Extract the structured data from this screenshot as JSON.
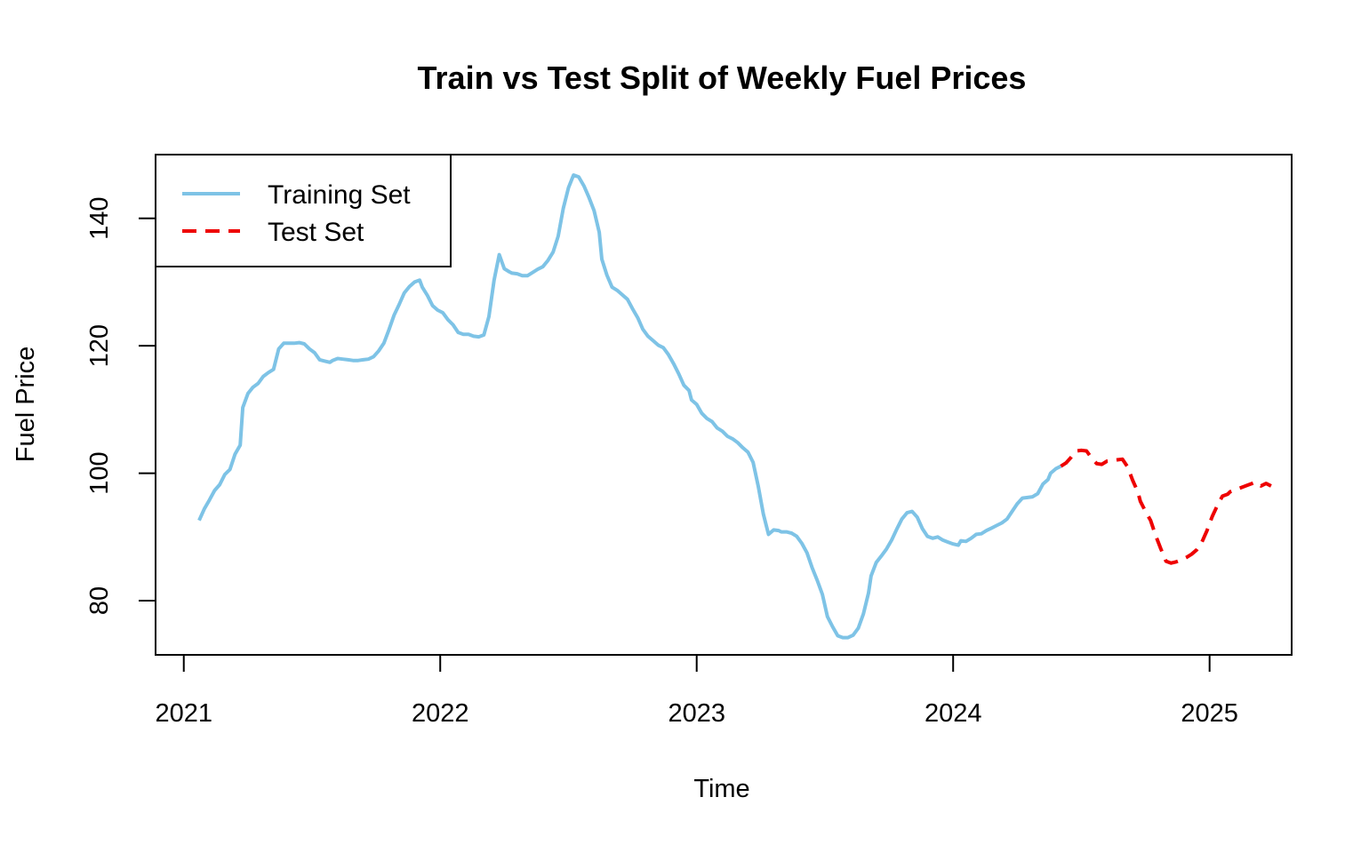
{
  "chart_data": {
    "type": "line",
    "title": "Train vs Test Split of Weekly Fuel Prices",
    "xlabel": "Time",
    "ylabel": "Fuel Price",
    "xlim": [
      2020.89,
      2025.32
    ],
    "ylim": [
      71.5,
      150
    ],
    "x_ticks": [
      {
        "value": 2021,
        "label": "2021"
      },
      {
        "value": 2022,
        "label": "2022"
      },
      {
        "value": 2023,
        "label": "2023"
      },
      {
        "value": 2024,
        "label": "2024"
      },
      {
        "value": 2025,
        "label": "2025"
      }
    ],
    "y_ticks": [
      {
        "value": 80,
        "label": "80"
      },
      {
        "value": 100,
        "label": "100"
      },
      {
        "value": 120,
        "label": "120"
      },
      {
        "value": 140,
        "label": "140"
      }
    ],
    "grid": false,
    "legend": {
      "position": "top-left"
    },
    "series": [
      {
        "name": "Training Set",
        "color": "#7ec3e6",
        "style": "solid",
        "points": [
          [
            2021.06,
            92.6
          ],
          [
            2021.08,
            94.4
          ],
          [
            2021.1,
            95.8
          ],
          [
            2021.12,
            97.3
          ],
          [
            2021.14,
            98.2
          ],
          [
            2021.16,
            99.8
          ],
          [
            2021.18,
            100.6
          ],
          [
            2021.2,
            103.0
          ],
          [
            2021.22,
            104.4
          ],
          [
            2021.23,
            110.3
          ],
          [
            2021.25,
            112.5
          ],
          [
            2021.27,
            113.5
          ],
          [
            2021.29,
            114.1
          ],
          [
            2021.31,
            115.2
          ],
          [
            2021.33,
            115.8
          ],
          [
            2021.35,
            116.3
          ],
          [
            2021.37,
            119.5
          ],
          [
            2021.39,
            120.4
          ],
          [
            2021.41,
            120.4
          ],
          [
            2021.43,
            120.4
          ],
          [
            2021.45,
            120.5
          ],
          [
            2021.47,
            120.3
          ],
          [
            2021.49,
            119.5
          ],
          [
            2021.51,
            118.9
          ],
          [
            2021.53,
            117.8
          ],
          [
            2021.55,
            117.6
          ],
          [
            2021.57,
            117.4
          ],
          [
            2021.58,
            117.7
          ],
          [
            2021.6,
            118.0
          ],
          [
            2021.62,
            117.9
          ],
          [
            2021.64,
            117.8
          ],
          [
            2021.66,
            117.7
          ],
          [
            2021.68,
            117.7
          ],
          [
            2021.7,
            117.8
          ],
          [
            2021.72,
            117.9
          ],
          [
            2021.74,
            118.3
          ],
          [
            2021.76,
            119.2
          ],
          [
            2021.78,
            120.4
          ],
          [
            2021.8,
            122.5
          ],
          [
            2021.82,
            124.8
          ],
          [
            2021.84,
            126.5
          ],
          [
            2021.86,
            128.3
          ],
          [
            2021.88,
            129.3
          ],
          [
            2021.9,
            130.0
          ],
          [
            2021.92,
            130.3
          ],
          [
            2021.93,
            129.2
          ],
          [
            2021.95,
            127.9
          ],
          [
            2021.97,
            126.3
          ],
          [
            2021.99,
            125.6
          ],
          [
            2022.01,
            125.2
          ],
          [
            2022.03,
            124.1
          ],
          [
            2022.05,
            123.3
          ],
          [
            2022.07,
            122.1
          ],
          [
            2022.09,
            121.8
          ],
          [
            2022.11,
            121.8
          ],
          [
            2022.13,
            121.5
          ],
          [
            2022.15,
            121.4
          ],
          [
            2022.17,
            121.7
          ],
          [
            2022.19,
            124.6
          ],
          [
            2022.21,
            130.3
          ],
          [
            2022.23,
            134.3
          ],
          [
            2022.25,
            132.1
          ],
          [
            2022.27,
            131.6
          ],
          [
            2022.28,
            131.4
          ],
          [
            2022.3,
            131.3
          ],
          [
            2022.32,
            131.0
          ],
          [
            2022.34,
            131.0
          ],
          [
            2022.36,
            131.5
          ],
          [
            2022.38,
            132.0
          ],
          [
            2022.4,
            132.4
          ],
          [
            2022.42,
            133.4
          ],
          [
            2022.44,
            134.7
          ],
          [
            2022.46,
            137.2
          ],
          [
            2022.48,
            141.6
          ],
          [
            2022.5,
            144.8
          ],
          [
            2022.52,
            146.8
          ],
          [
            2022.54,
            146.5
          ],
          [
            2022.56,
            145.1
          ],
          [
            2022.58,
            143.3
          ],
          [
            2022.6,
            141.2
          ],
          [
            2022.62,
            137.8
          ],
          [
            2022.63,
            133.6
          ],
          [
            2022.65,
            131.1
          ],
          [
            2022.67,
            129.2
          ],
          [
            2022.69,
            128.7
          ],
          [
            2022.71,
            128.0
          ],
          [
            2022.73,
            127.3
          ],
          [
            2022.75,
            125.8
          ],
          [
            2022.77,
            124.4
          ],
          [
            2022.79,
            122.6
          ],
          [
            2022.81,
            121.5
          ],
          [
            2022.83,
            120.8
          ],
          [
            2022.85,
            120.1
          ],
          [
            2022.87,
            119.7
          ],
          [
            2022.89,
            118.6
          ],
          [
            2022.91,
            117.2
          ],
          [
            2022.93,
            115.6
          ],
          [
            2022.95,
            113.8
          ],
          [
            2022.97,
            113.0
          ],
          [
            2022.98,
            111.5
          ],
          [
            2023.0,
            110.8
          ],
          [
            2023.02,
            109.4
          ],
          [
            2023.04,
            108.6
          ],
          [
            2023.06,
            108.1
          ],
          [
            2023.08,
            107.1
          ],
          [
            2023.1,
            106.6
          ],
          [
            2023.12,
            105.8
          ],
          [
            2023.14,
            105.4
          ],
          [
            2023.16,
            104.8
          ],
          [
            2023.18,
            104.0
          ],
          [
            2023.2,
            103.3
          ],
          [
            2023.22,
            101.7
          ],
          [
            2023.24,
            98.0
          ],
          [
            2023.26,
            93.6
          ],
          [
            2023.28,
            90.4
          ],
          [
            2023.3,
            91.1
          ],
          [
            2023.32,
            91.0
          ],
          [
            2023.33,
            90.8
          ],
          [
            2023.35,
            90.8
          ],
          [
            2023.37,
            90.6
          ],
          [
            2023.39,
            90.1
          ],
          [
            2023.41,
            89.0
          ],
          [
            2023.43,
            87.5
          ],
          [
            2023.45,
            85.2
          ],
          [
            2023.47,
            83.2
          ],
          [
            2023.49,
            81.0
          ],
          [
            2023.51,
            77.5
          ],
          [
            2023.53,
            75.9
          ],
          [
            2023.55,
            74.5
          ],
          [
            2023.57,
            74.2
          ],
          [
            2023.59,
            74.2
          ],
          [
            2023.61,
            74.6
          ],
          [
            2023.63,
            75.7
          ],
          [
            2023.65,
            77.9
          ],
          [
            2023.67,
            81.2
          ],
          [
            2023.68,
            83.9
          ],
          [
            2023.7,
            86.0
          ],
          [
            2023.72,
            87.0
          ],
          [
            2023.74,
            88.1
          ],
          [
            2023.76,
            89.5
          ],
          [
            2023.78,
            91.2
          ],
          [
            2023.8,
            92.8
          ],
          [
            2023.82,
            93.8
          ],
          [
            2023.84,
            94.0
          ],
          [
            2023.86,
            93.1
          ],
          [
            2023.88,
            91.3
          ],
          [
            2023.9,
            90.1
          ],
          [
            2023.92,
            89.8
          ],
          [
            2023.94,
            90.0
          ],
          [
            2023.96,
            89.5
          ],
          [
            2023.98,
            89.2
          ],
          [
            2024.0,
            88.9
          ],
          [
            2024.02,
            88.7
          ],
          [
            2024.03,
            89.4
          ],
          [
            2024.05,
            89.3
          ],
          [
            2024.07,
            89.8
          ],
          [
            2024.09,
            90.4
          ],
          [
            2024.11,
            90.5
          ],
          [
            2024.13,
            91.0
          ],
          [
            2024.15,
            91.4
          ],
          [
            2024.17,
            91.8
          ],
          [
            2024.19,
            92.2
          ],
          [
            2024.21,
            92.8
          ],
          [
            2024.23,
            94.0
          ],
          [
            2024.25,
            95.2
          ],
          [
            2024.27,
            96.1
          ],
          [
            2024.29,
            96.2
          ],
          [
            2024.31,
            96.3
          ],
          [
            2024.33,
            96.8
          ],
          [
            2024.35,
            98.3
          ],
          [
            2024.37,
            99.0
          ],
          [
            2024.38,
            100.0
          ],
          [
            2024.4,
            100.7
          ],
          [
            2024.42,
            101.1
          ]
        ]
      },
      {
        "name": "Test Set",
        "color": "#ee0000",
        "style": "dashed",
        "points": [
          [
            2024.42,
            101.1
          ],
          [
            2024.44,
            101.6
          ],
          [
            2024.46,
            102.5
          ],
          [
            2024.48,
            103.5
          ],
          [
            2024.5,
            103.6
          ],
          [
            2024.52,
            103.5
          ],
          [
            2024.54,
            102.4
          ],
          [
            2024.56,
            101.5
          ],
          [
            2024.58,
            101.4
          ],
          [
            2024.6,
            101.9
          ],
          [
            2024.62,
            102.0
          ],
          [
            2024.64,
            102.1
          ],
          [
            2024.66,
            102.2
          ],
          [
            2024.68,
            101.0
          ],
          [
            2024.7,
            98.9
          ],
          [
            2024.72,
            97.1
          ],
          [
            2024.73,
            95.6
          ],
          [
            2024.75,
            94.0
          ],
          [
            2024.77,
            92.6
          ],
          [
            2024.79,
            90.2
          ],
          [
            2024.81,
            88.1
          ],
          [
            2024.83,
            86.2
          ],
          [
            2024.85,
            85.9
          ],
          [
            2024.87,
            86.1
          ],
          [
            2024.89,
            86.4
          ],
          [
            2024.91,
            86.8
          ],
          [
            2024.93,
            87.3
          ],
          [
            2024.95,
            88.0
          ],
          [
            2024.97,
            89.2
          ],
          [
            2024.99,
            91.0
          ],
          [
            2025.01,
            93.2
          ],
          [
            2025.03,
            94.9
          ],
          [
            2025.05,
            96.4
          ],
          [
            2025.07,
            96.7
          ],
          [
            2025.08,
            97.1
          ],
          [
            2025.1,
            97.4
          ],
          [
            2025.12,
            97.7
          ],
          [
            2025.14,
            98.0
          ],
          [
            2025.16,
            98.3
          ],
          [
            2025.18,
            98.6
          ],
          [
            2025.2,
            98.0
          ],
          [
            2025.22,
            98.4
          ],
          [
            2025.24,
            98.0
          ]
        ]
      }
    ]
  }
}
